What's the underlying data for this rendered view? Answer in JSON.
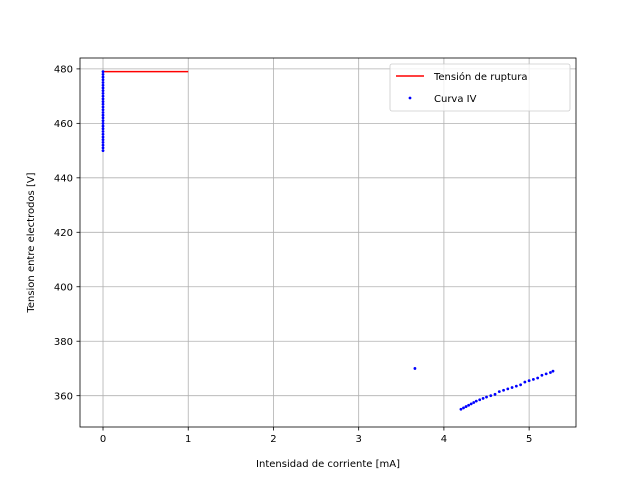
{
  "chart_data": {
    "type": "scatter",
    "title": "",
    "xlabel": "Intensidad de corriente [mA]",
    "ylabel": "Tension entre electrodos [V]",
    "xlim": [
      -0.27,
      5.55
    ],
    "ylim": [
      348.5,
      484
    ],
    "xticks": [
      0,
      1,
      2,
      3,
      4,
      5
    ],
    "yticks": [
      360,
      380,
      400,
      420,
      440,
      460,
      480
    ],
    "grid": true,
    "legend_position": "top-right",
    "series": [
      {
        "name": "Tensión de ruptura",
        "kind": "line",
        "color": "#ff0000",
        "points": [
          [
            0,
            479
          ],
          [
            1,
            479
          ]
        ]
      },
      {
        "name": "Curva IV",
        "kind": "scatter",
        "color": "#0000ff",
        "points": [
          [
            0,
            450
          ],
          [
            0,
            451
          ],
          [
            0,
            452
          ],
          [
            0,
            453
          ],
          [
            0,
            454
          ],
          [
            0,
            455
          ],
          [
            0,
            456
          ],
          [
            0,
            457
          ],
          [
            0,
            458
          ],
          [
            0,
            459
          ],
          [
            0,
            460
          ],
          [
            0,
            461
          ],
          [
            0,
            462
          ],
          [
            0,
            463
          ],
          [
            0,
            464
          ],
          [
            0,
            465
          ],
          [
            0,
            466
          ],
          [
            0,
            467
          ],
          [
            0,
            468
          ],
          [
            0,
            469
          ],
          [
            0,
            470
          ],
          [
            0,
            471
          ],
          [
            0,
            472
          ],
          [
            0,
            473
          ],
          [
            0,
            474
          ],
          [
            0,
            475
          ],
          [
            0,
            476
          ],
          [
            0,
            477
          ],
          [
            0,
            478
          ],
          [
            0,
            479
          ],
          [
            3.66,
            370
          ],
          [
            4.2,
            355
          ],
          [
            4.23,
            355.5
          ],
          [
            4.26,
            356
          ],
          [
            4.29,
            356.5
          ],
          [
            4.32,
            357
          ],
          [
            4.35,
            357.5
          ],
          [
            4.38,
            358
          ],
          [
            4.42,
            358.5
          ],
          [
            4.46,
            359
          ],
          [
            4.5,
            359.5
          ],
          [
            4.55,
            360
          ],
          [
            4.6,
            360.5
          ],
          [
            4.65,
            361.5
          ],
          [
            4.7,
            362
          ],
          [
            4.75,
            362.5
          ],
          [
            4.8,
            363
          ],
          [
            4.85,
            363.5
          ],
          [
            4.9,
            364
          ],
          [
            4.95,
            365
          ],
          [
            5.0,
            365.5
          ],
          [
            5.05,
            366
          ],
          [
            5.1,
            366.5
          ],
          [
            5.15,
            367.5
          ],
          [
            5.2,
            368
          ],
          [
            5.25,
            368.5
          ],
          [
            5.28,
            369
          ]
        ]
      }
    ]
  }
}
